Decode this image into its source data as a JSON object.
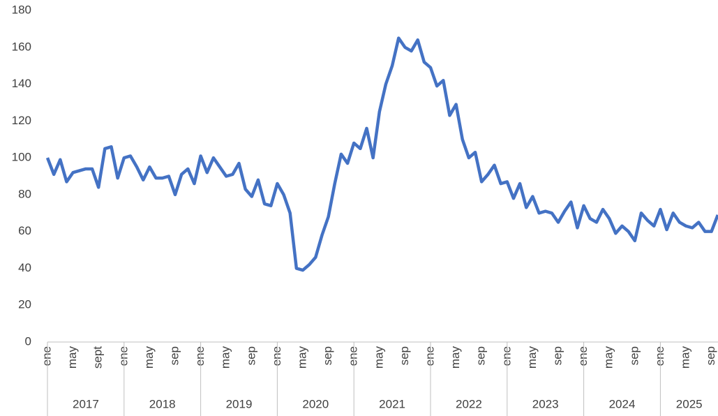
{
  "chart_data": {
    "type": "line",
    "categories": [
      "ene",
      null,
      null,
      null,
      "may",
      null,
      null,
      null,
      "sept",
      null,
      null,
      null,
      "ene",
      null,
      null,
      null,
      "may",
      null,
      null,
      null,
      "sep",
      null,
      null,
      null,
      "ene",
      null,
      null,
      null,
      "may",
      null,
      null,
      null,
      "sep",
      null,
      null,
      null,
      "ene",
      null,
      null,
      null,
      "may",
      null,
      null,
      null,
      "sep",
      null,
      null,
      null,
      "ene",
      null,
      null,
      null,
      "may",
      null,
      null,
      null,
      "sep",
      null,
      null,
      null,
      "ene",
      null,
      null,
      null,
      "may",
      null,
      null,
      null,
      "sep",
      null,
      null,
      null,
      "ene",
      null,
      null,
      null,
      "may",
      null,
      null,
      null,
      "sep",
      null,
      null,
      null,
      "ene",
      null,
      null,
      null,
      "may",
      null,
      null,
      null,
      "sep",
      null,
      null,
      null,
      "ene",
      null,
      null,
      null,
      "may",
      null,
      null,
      null,
      "sep",
      null
    ],
    "groups": [
      "2017",
      "2018",
      "2019",
      "2020",
      "2021",
      "2022",
      "2023",
      "2024",
      "2025"
    ],
    "series": [
      {
        "color": "#4472c4",
        "values": [
          100,
          91,
          99,
          87,
          92,
          93,
          94,
          94,
          84,
          105,
          106,
          89,
          100,
          101,
          95,
          88,
          95,
          89,
          89,
          90,
          80,
          91,
          94,
          86,
          101,
          92,
          100,
          95,
          90,
          91,
          97,
          83,
          79,
          88,
          75,
          74,
          86,
          80,
          70,
          40,
          39,
          42,
          46,
          58,
          68,
          86,
          102,
          97,
          108,
          105,
          116,
          100,
          125,
          140,
          150,
          165,
          160,
          158,
          164,
          152,
          149,
          139,
          142,
          123,
          129,
          110,
          100,
          103,
          87,
          91,
          96,
          86,
          87,
          78,
          86,
          73,
          79,
          70,
          71,
          70,
          65,
          71,
          76,
          62,
          74,
          67,
          65,
          72,
          67,
          59,
          63,
          60,
          55,
          70,
          66,
          63,
          72,
          61,
          70,
          65,
          63,
          62,
          65,
          60,
          60,
          69
        ]
      }
    ],
    "ylim": [
      0,
      180
    ],
    "yticks": [
      0,
      20,
      40,
      60,
      80,
      100,
      120,
      140,
      160,
      180
    ],
    "grid": false
  }
}
